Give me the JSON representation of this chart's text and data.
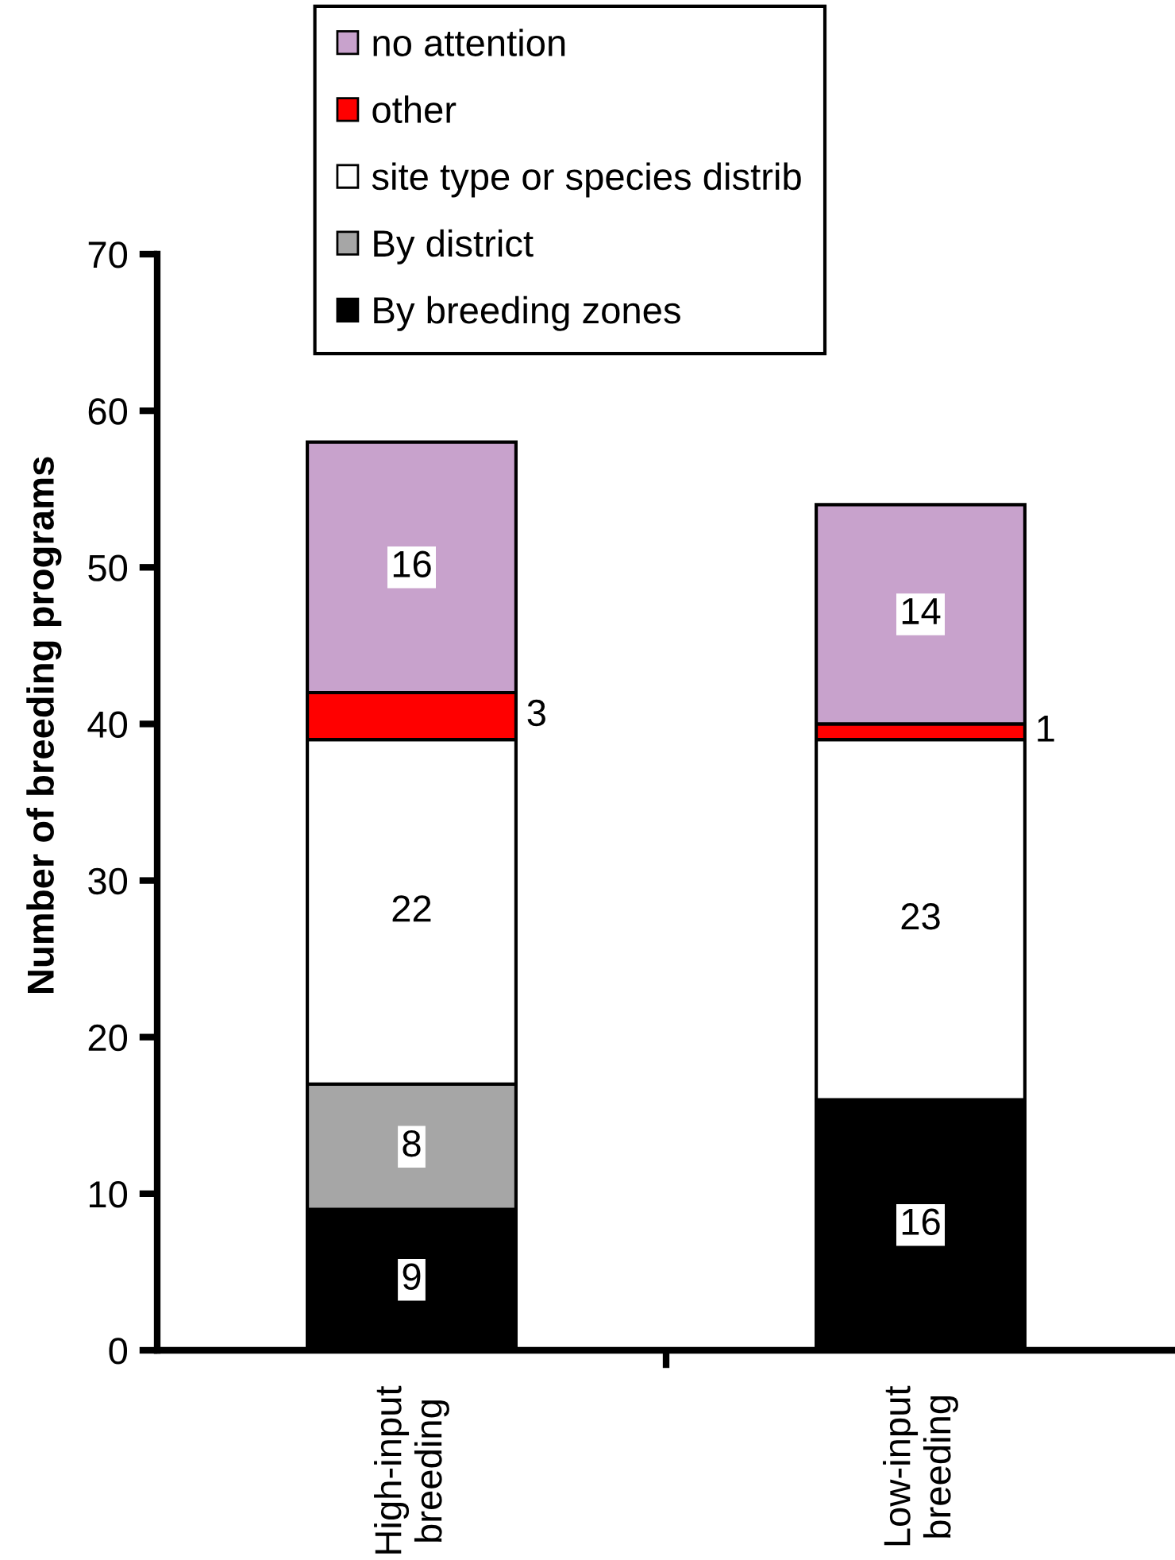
{
  "chart_data": {
    "type": "bar",
    "stacked": true,
    "ylabel": "Number of breeding programs",
    "categories": [
      "High-input breeding",
      "Low-input breeding"
    ],
    "series": [
      {
        "name": "By breeding zones",
        "color": "#000000",
        "values": [
          9,
          16
        ],
        "value_labels": [
          "9",
          "16"
        ]
      },
      {
        "name": "By district",
        "color": "#a6a6a6",
        "values": [
          8,
          0
        ],
        "value_labels": [
          "8",
          null
        ]
      },
      {
        "name": "site type or species distrib",
        "color": "#ffffff",
        "values": [
          22,
          23
        ],
        "value_labels": [
          "22",
          "23"
        ]
      },
      {
        "name": "other",
        "color": "#ff0000",
        "values": [
          3,
          1
        ],
        "value_labels": [
          "3",
          "1"
        ]
      },
      {
        "name": "no attention",
        "color": "#c8a2cc",
        "values": [
          16,
          14
        ],
        "value_labels": [
          "16",
          "14"
        ]
      }
    ],
    "ylim": [
      0,
      70
    ],
    "yticks": [
      0,
      10,
      20,
      30,
      40,
      50,
      60,
      70
    ],
    "legend": "top"
  }
}
